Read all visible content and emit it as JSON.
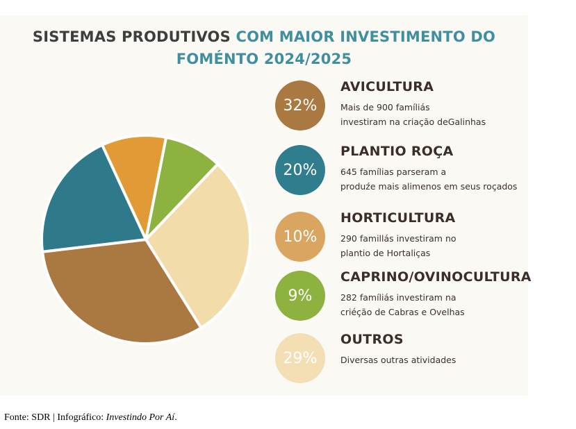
{
  "title": {
    "part1": "SISTEMAS PRODUTIVOS",
    "part2": "COM MAIOR INVESTIMENTO DO",
    "line2": "FOMÉNTO 2024/2025"
  },
  "chart_data": {
    "type": "pie",
    "slices": [
      {
        "label": "AVICULTURA",
        "value": 32,
        "value_label": "32%",
        "color": "#a97941",
        "desc_line1": "Mais de 900 famíliás",
        "desc_line2": "investiram na criação deGalinhas"
      },
      {
        "label": "PLANTIO ROÇA",
        "value": 20,
        "value_label": "20%",
        "color": "#2f7a8a",
        "desc_line1": "645 famílias parseram a",
        "desc_line2": "produźe mais alimenos em seus roçados"
      },
      {
        "label": "HORTICULTURA",
        "value": 10,
        "value_label": "10%",
        "color": "#e29a36",
        "desc_line1": "290 famillás investiram  no",
        "desc_line2": "plantio de Hortaliças"
      },
      {
        "label": "CAPRINO/OVINOCULTURA",
        "value": 9,
        "value_label": "9%",
        "color": "#8db23f",
        "desc_line1": "282 famíliás investiram na",
        "desc_line2": "criéção de Cabras e Ovelhas"
      },
      {
        "label": "OUTROS",
        "value": 29,
        "value_label": "29%",
        "color": "#f2dcaa",
        "desc_line1": "Diversas outras atividades",
        "desc_line2": ""
      }
    ]
  },
  "legend_colors": {
    "avicultura": "#a97941",
    "plantio": "#307d8e",
    "horticultura": "#d9a561",
    "caprino": "#8db23f",
    "outros": "#f3dfb3"
  },
  "footer": {
    "prefix": "Fonte: SDR | Infográfico: ",
    "source": "Investindo Por Aí",
    "suffix": "."
  }
}
